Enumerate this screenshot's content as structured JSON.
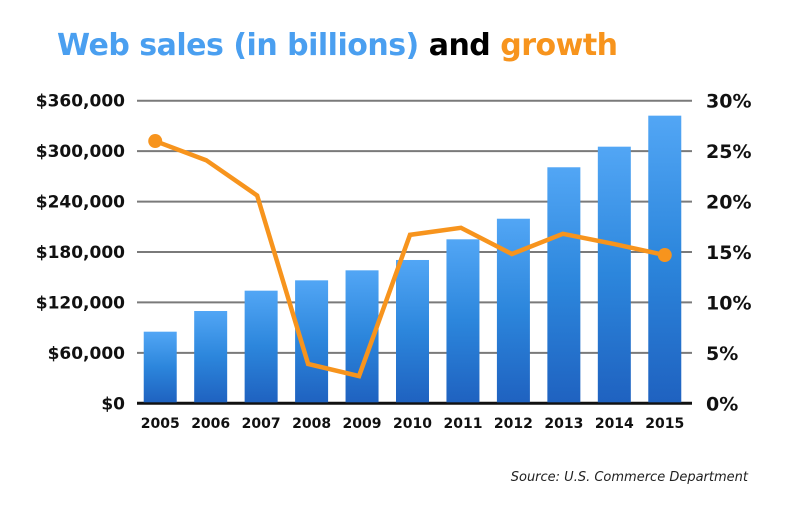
{
  "chart_data": {
    "type": "bar+line",
    "title_parts": [
      {
        "text": "Web sales (in billions)",
        "color": "#4a9ff0"
      },
      {
        "text": " and ",
        "color": "#000000"
      },
      {
        "text": "growth",
        "color": "#f7941d"
      }
    ],
    "categories": [
      "2005",
      "2006",
      "2007",
      "2008",
      "2009",
      "2010",
      "2011",
      "2012",
      "2013",
      "2014",
      "2015"
    ],
    "series": [
      {
        "type": "bar",
        "axis": "left",
        "color": "#2a7fd9",
        "values": [
          85200,
          109800,
          134000,
          146300,
          158200,
          170500,
          195100,
          219600,
          280800,
          305300,
          342200
        ]
      },
      {
        "type": "line",
        "axis": "right",
        "color": "#f7941d",
        "values": [
          26.0,
          24.1,
          20.6,
          3.9,
          2.7,
          16.7,
          17.4,
          14.8,
          16.8,
          15.8,
          14.7
        ]
      }
    ],
    "left_axis": {
      "ylim": [
        0,
        360000
      ],
      "ticks": [
        "$0",
        "$60,000",
        "$120,000",
        "$180,000",
        "$240,000",
        "$300,000",
        "$360,000"
      ]
    },
    "right_axis": {
      "ylim": [
        0,
        30
      ],
      "ticks": [
        "0%",
        "5%",
        "10%",
        "15%",
        "20%",
        "25%",
        "30%"
      ]
    },
    "grid": true,
    "source": "Source: U.S. Commerce Department"
  }
}
